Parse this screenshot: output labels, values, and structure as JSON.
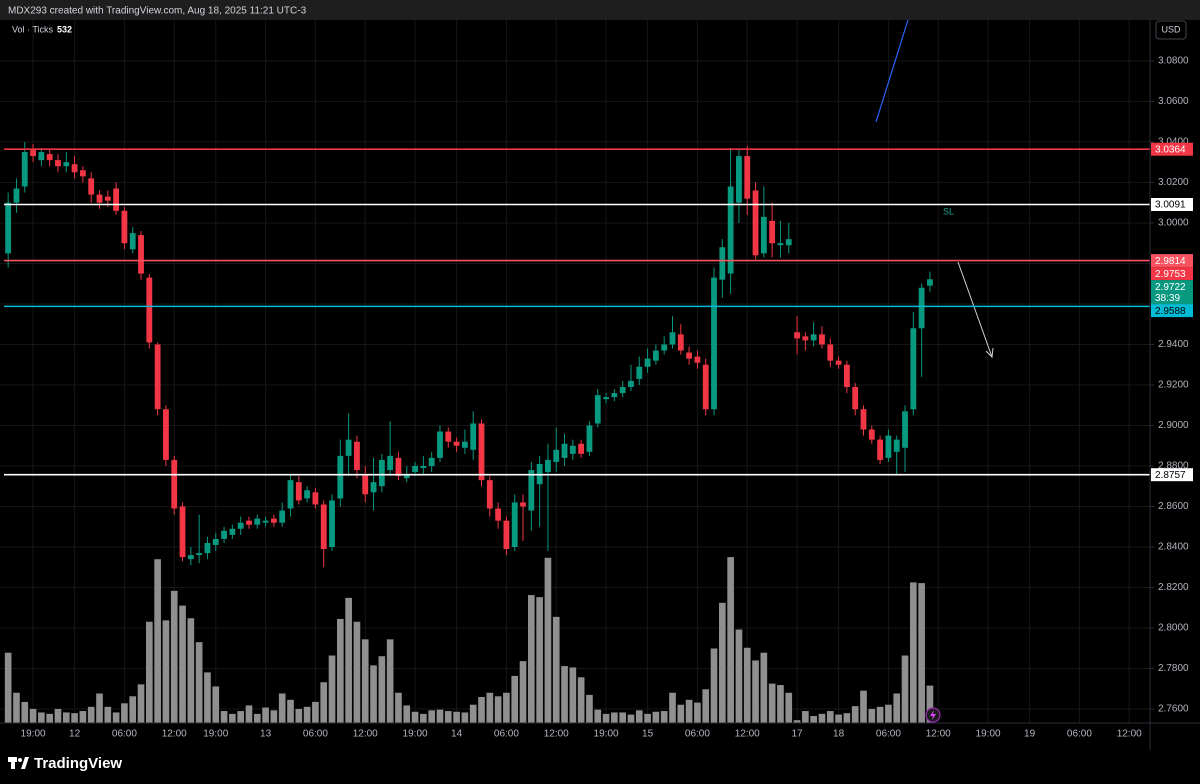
{
  "brand": "TradingView",
  "chart_data": {
    "type": "candlestick",
    "title": "MDX293 created with TradingView.com, Aug 18, 2025 11:21 UTC-3",
    "volume_label": "Vol · Ticks",
    "currency": "USD",
    "annotation": "SL",
    "countdown": "38:39",
    "up_color": "#089981",
    "down_color": "#f23645",
    "volume_color": "#8f8f8f",
    "grid": true,
    "ylim": [
      2.7531,
      3.1002
    ],
    "y2lim": [
      0,
      10000
    ],
    "yticks": [
      {
        "value": 3.08,
        "label": "3.0800"
      },
      {
        "value": 3.06,
        "label": "3.0600"
      },
      {
        "value": 3.04,
        "label": "3.0400"
      },
      {
        "value": 3.02,
        "label": "3.0200"
      },
      {
        "value": 3.0,
        "label": "3.0000"
      },
      {
        "value": 2.98,
        "label": "2.9800"
      },
      {
        "value": 2.96,
        "label": "2.9600"
      },
      {
        "value": 2.94,
        "label": "2.9400"
      },
      {
        "value": 2.92,
        "label": "2.9200"
      },
      {
        "value": 2.9,
        "label": "2.9000"
      },
      {
        "value": 2.88,
        "label": "2.8800"
      },
      {
        "value": 2.86,
        "label": "2.8600"
      },
      {
        "value": 2.84,
        "label": "2.8400"
      },
      {
        "value": 2.82,
        "label": "2.8200"
      },
      {
        "value": 2.8,
        "label": "2.8000"
      },
      {
        "value": 2.78,
        "label": "2.7800"
      },
      {
        "value": 2.76,
        "label": "2.7600"
      }
    ],
    "levels": [
      {
        "value": 3.0364,
        "color": "#f23645",
        "label_text_color": "#ffffff"
      },
      {
        "value": 3.0091,
        "color": "#ffffff",
        "label_text_color": "#000000"
      },
      {
        "value": 2.9814,
        "color": "#f7525f",
        "label_text_color": "#ffffff"
      },
      {
        "value": 2.9588,
        "color": "#00bcd4",
        "label_text_color": "#000000"
      },
      {
        "value": 2.8757,
        "color": "#ffffff",
        "label_text_color": "#000000"
      }
    ],
    "price_labels": [
      {
        "value": 2.9753,
        "color": "#f23645"
      },
      {
        "value": 2.9722,
        "color": "#089981"
      }
    ],
    "categories": [
      null,
      null,
      null,
      "19:00",
      null,
      null,
      null,
      null,
      "12",
      null,
      null,
      null,
      null,
      null,
      "06:00",
      null,
      null,
      null,
      null,
      null,
      "12:00",
      null,
      null,
      null,
      null,
      "19:00",
      null,
      null,
      null,
      null,
      null,
      "13",
      null,
      null,
      null,
      null,
      null,
      "06:00",
      null,
      null,
      null,
      null,
      null,
      "12:00",
      null,
      null,
      null,
      null,
      null,
      "19:00",
      null,
      null,
      null,
      null,
      "14",
      null,
      null,
      null,
      null,
      null,
      "06:00",
      null,
      null,
      null,
      null,
      null,
      "12:00",
      null,
      null,
      null,
      null,
      null,
      "19:00",
      null,
      null,
      null,
      null,
      "15",
      null,
      null,
      null,
      null,
      null,
      "06:00",
      null,
      null,
      null,
      null,
      null,
      "12:00",
      null,
      null,
      null,
      null,
      null,
      "17",
      null,
      null,
      null,
      null,
      "18",
      null,
      null,
      null,
      null,
      null,
      "06:00",
      null,
      null,
      null,
      null,
      null,
      "12:00",
      null,
      null,
      null,
      null,
      null,
      "19:00",
      null,
      null,
      null,
      null,
      "19",
      null,
      null,
      null,
      null,
      null,
      "06:00",
      null,
      null,
      null,
      null,
      null,
      "12:00",
      null,
      null
    ],
    "open": [
      2.985,
      3.01,
      3.018,
      3.036,
      3.031,
      3.034,
      3.031,
      3.028,
      3.029,
      3.026,
      3.022,
      3.014,
      3.013,
      3.017,
      3.006,
      2.987,
      2.994,
      2.973,
      2.94,
      2.908,
      2.883,
      2.86,
      2.834,
      2.836,
      2.837,
      2.841,
      2.844,
      2.846,
      2.849,
      2.853,
      2.851,
      2.852,
      2.854,
      2.852,
      2.859,
      2.872,
      2.864,
      2.867,
      2.861,
      2.84,
      2.864,
      2.885,
      2.892,
      2.876,
      2.867,
      2.87,
      2.878,
      2.884,
      2.874,
      2.877,
      2.879,
      2.88,
      2.884,
      2.897,
      2.892,
      2.889,
      2.888,
      2.901,
      2.873,
      2.859,
      2.853,
      2.84,
      2.862,
      2.858,
      2.871,
      2.877,
      2.882,
      2.884,
      2.886,
      2.891,
      2.887,
      2.901,
      2.913,
      2.914,
      2.916,
      2.919,
      2.923,
      2.929,
      2.932,
      2.937,
      2.94,
      2.945,
      2.936,
      2.934,
      2.93,
      2.908,
      2.972,
      2.975,
      3.01,
      3.033,
      3.016,
      2.985,
      3.001,
      2.989,
      2.989,
      2.946,
      2.944,
      2.942,
      2.945,
      2.94,
      2.932,
      2.93,
      2.919,
      2.908,
      2.898,
      2.893,
      2.884,
      2.887,
      2.889,
      2.908,
      2.948,
      2.969,
      null,
      null,
      null,
      null,
      null,
      null,
      null,
      null,
      null,
      null,
      null,
      null,
      null,
      null,
      null,
      null,
      null,
      null,
      null,
      null,
      null,
      null,
      null,
      null,
      null,
      null
    ],
    "high": [
      3.015,
      3.022,
      3.04,
      3.039,
      3.037,
      3.036,
      3.034,
      3.035,
      3.033,
      3.028,
      3.025,
      3.016,
      3.016,
      3.02,
      3.008,
      2.998,
      2.996,
      2.975,
      2.941,
      2.91,
      2.885,
      2.862,
      2.84,
      2.856,
      2.845,
      2.847,
      2.85,
      2.851,
      2.855,
      2.855,
      2.856,
      2.855,
      2.856,
      2.862,
      2.876,
      2.875,
      2.87,
      2.869,
      2.863,
      2.866,
      2.893,
      2.906,
      2.895,
      2.88,
      2.884,
      2.886,
      2.902,
      2.887,
      2.88,
      2.882,
      2.885,
      2.887,
      2.9,
      2.899,
      2.894,
      2.898,
      2.907,
      2.903,
      2.875,
      2.862,
      2.855,
      2.866,
      2.866,
      2.882,
      2.885,
      2.891,
      2.899,
      2.896,
      2.893,
      2.893,
      2.902,
      2.918,
      2.916,
      2.918,
      2.922,
      2.93,
      2.934,
      2.938,
      2.94,
      2.944,
      2.954,
      2.95,
      2.939,
      2.937,
      2.933,
      2.978,
      2.992,
      3.037,
      3.036,
      3.038,
      3.02,
      3.018,
      3.01,
      3.001,
      3.0,
      2.954,
      2.946,
      2.951,
      2.949,
      2.943,
      2.934,
      2.932,
      2.921,
      2.91,
      2.9,
      2.895,
      2.898,
      2.895,
      2.91,
      2.956,
      2.97,
      2.976,
      null,
      null,
      null,
      null,
      null,
      null,
      null,
      null,
      null,
      null,
      null,
      null,
      null,
      null,
      null,
      null,
      null,
      null,
      null,
      null,
      null,
      null,
      null,
      null,
      null,
      null
    ],
    "low": [
      2.978,
      3.005,
      3.015,
      3.03,
      3.028,
      3.028,
      3.025,
      3.025,
      3.022,
      3.02,
      3.01,
      3.007,
      3.008,
      3.004,
      2.987,
      2.985,
      2.972,
      2.938,
      2.905,
      2.88,
      2.856,
      2.833,
      2.831,
      2.832,
      2.834,
      2.838,
      2.842,
      2.844,
      2.846,
      2.849,
      2.849,
      2.85,
      2.85,
      2.85,
      2.855,
      2.861,
      2.862,
      2.859,
      2.83,
      2.838,
      2.86,
      2.875,
      2.874,
      2.862,
      2.858,
      2.867,
      2.875,
      2.873,
      2.872,
      2.875,
      2.876,
      2.877,
      2.882,
      2.889,
      2.887,
      2.886,
      2.883,
      2.87,
      2.855,
      2.849,
      2.836,
      2.838,
      2.843,
      2.848,
      2.85,
      2.838,
      2.877,
      2.88,
      2.883,
      2.884,
      2.885,
      2.899,
      2.911,
      2.912,
      2.914,
      2.917,
      2.92,
      2.926,
      2.93,
      2.935,
      2.938,
      2.935,
      2.93,
      2.928,
      2.905,
      2.905,
      2.963,
      2.965,
      3.0,
      3.004,
      2.982,
      2.983,
      2.983,
      2.983,
      2.985,
      2.935,
      2.937,
      2.939,
      2.938,
      2.929,
      2.928,
      2.916,
      2.905,
      2.895,
      2.891,
      2.881,
      2.882,
      2.876,
      2.877,
      2.905,
      2.924,
      2.966,
      null,
      null,
      null,
      null,
      null,
      null,
      null,
      null,
      null,
      null,
      null,
      null,
      null,
      null,
      null,
      null,
      null,
      null,
      null,
      null,
      null,
      null,
      null,
      null,
      null,
      null
    ],
    "close": [
      3.01,
      3.017,
      3.035,
      3.033,
      3.035,
      3.031,
      3.028,
      3.03,
      3.025,
      3.023,
      3.014,
      3.01,
      3.011,
      3.006,
      2.99,
      2.995,
      2.975,
      2.941,
      2.908,
      2.883,
      2.859,
      2.835,
      2.836,
      2.837,
      2.842,
      2.844,
      2.848,
      2.849,
      2.852,
      2.851,
      2.854,
      2.853,
      2.852,
      2.858,
      2.873,
      2.863,
      2.868,
      2.861,
      2.839,
      2.863,
      2.885,
      2.893,
      2.878,
      2.866,
      2.872,
      2.883,
      2.885,
      2.875,
      2.876,
      2.88,
      2.88,
      2.884,
      2.897,
      2.892,
      2.89,
      2.892,
      2.901,
      2.873,
      2.859,
      2.853,
      2.839,
      2.862,
      2.86,
      2.878,
      2.881,
      2.883,
      2.888,
      2.891,
      2.89,
      2.886,
      2.9,
      2.915,
      2.914,
      2.916,
      2.919,
      2.922,
      2.929,
      2.933,
      2.937,
      2.94,
      2.946,
      2.937,
      2.933,
      2.931,
      2.908,
      2.973,
      2.988,
      3.018,
      3.033,
      3.012,
      2.984,
      3.003,
      2.99,
      2.99,
      2.992,
      2.943,
      2.942,
      2.945,
      2.94,
      2.932,
      2.93,
      2.919,
      2.908,
      2.898,
      2.893,
      2.883,
      2.895,
      2.893,
      2.907,
      2.948,
      2.968,
      2.9722,
      null,
      null,
      null,
      null,
      null,
      null,
      null,
      null,
      null,
      null,
      null,
      null,
      null,
      null,
      null,
      null,
      null,
      null,
      null,
      null,
      null,
      null,
      null,
      null,
      null,
      null
    ],
    "volume": [
      1000,
      430,
      300,
      200,
      150,
      130,
      200,
      150,
      140,
      170,
      230,
      420,
      230,
      150,
      280,
      380,
      550,
      1440,
      2330,
      1460,
      1880,
      1670,
      1490,
      1150,
      720,
      520,
      170,
      130,
      170,
      250,
      130,
      220,
      180,
      420,
      330,
      200,
      230,
      300,
      580,
      960,
      1480,
      1780,
      1440,
      1190,
      820,
      950,
      1190,
      430,
      250,
      160,
      130,
      180,
      190,
      170,
      160,
      150,
      260,
      370,
      430,
      380,
      430,
      670,
      880,
      1820,
      1790,
      2350,
      1510,
      810,
      790,
      650,
      400,
      190,
      130,
      150,
      150,
      120,
      180,
      130,
      160,
      170,
      430,
      260,
      330,
      290,
      480,
      1060,
      1710,
      2360,
      1330,
      1070,
      890,
      1000,
      560,
      540,
      430,
      40,
      170,
      100,
      130,
      170,
      120,
      140,
      240,
      460,
      200,
      230,
      260,
      420,
      960,
      2000,
      1990,
      532,
      null,
      null,
      null,
      null,
      null,
      null,
      null,
      null,
      null,
      null,
      null,
      null,
      null,
      null,
      null,
      null,
      null,
      null,
      null,
      null,
      null,
      null,
      null,
      null,
      null,
      null
    ]
  }
}
